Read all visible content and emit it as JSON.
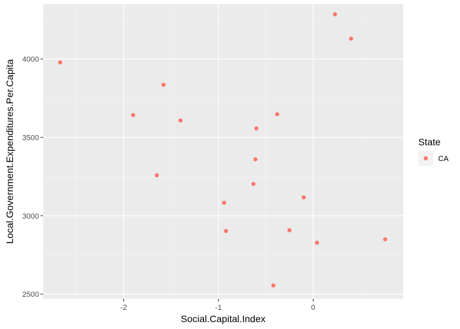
{
  "chart_data": {
    "type": "scatter",
    "xlabel": "Social.Capital.Index",
    "ylabel": "Local.Government.Expenditures.Per.Capita",
    "xlim": [
      -2.85,
      0.95
    ],
    "ylim": [
      2470,
      4350
    ],
    "x_ticks": [
      -2,
      -1,
      0
    ],
    "y_ticks": [
      2500,
      3000,
      3500,
      4000
    ],
    "x_tick_labels": [
      "-2",
      "-1",
      "0"
    ],
    "y_tick_labels": [
      "2500",
      "3000",
      "3500",
      "4000"
    ],
    "grid": true,
    "legend": {
      "title": "State",
      "position": "right",
      "entries": [
        {
          "label": "CA",
          "color": "#F8766D"
        }
      ]
    },
    "series": [
      {
        "name": "CA",
        "color": "#F8766D",
        "points": [
          {
            "x": -2.67,
            "y": 3978
          },
          {
            "x": -1.58,
            "y": 3835
          },
          {
            "x": -1.9,
            "y": 3642
          },
          {
            "x": -1.4,
            "y": 3608
          },
          {
            "x": -1.65,
            "y": 3258
          },
          {
            "x": -0.6,
            "y": 3557
          },
          {
            "x": -0.38,
            "y": 3648
          },
          {
            "x": -0.61,
            "y": 3360
          },
          {
            "x": -0.63,
            "y": 3203
          },
          {
            "x": -0.1,
            "y": 3117
          },
          {
            "x": -0.94,
            "y": 3083
          },
          {
            "x": -0.92,
            "y": 2903
          },
          {
            "x": -0.25,
            "y": 2908
          },
          {
            "x": 0.04,
            "y": 2828
          },
          {
            "x": 0.76,
            "y": 2850
          },
          {
            "x": -0.42,
            "y": 2555
          },
          {
            "x": 0.23,
            "y": 4285
          },
          {
            "x": 0.4,
            "y": 4130
          }
        ]
      }
    ]
  }
}
